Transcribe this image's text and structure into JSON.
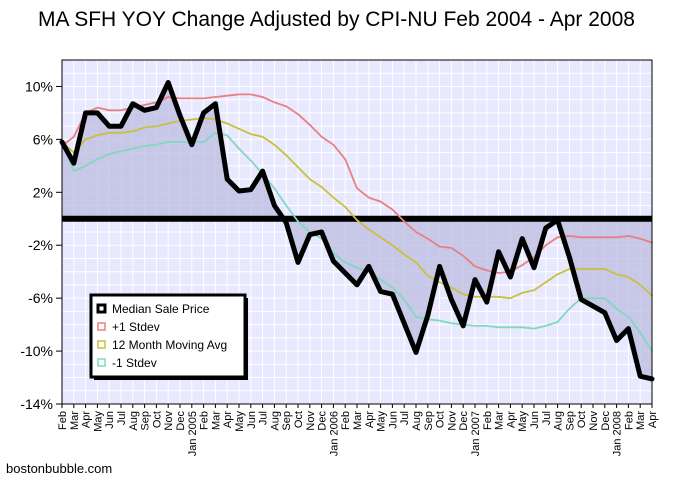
{
  "footer": {
    "credit": "bostonbubble.com"
  },
  "colors": {
    "background": "#ffffff",
    "plot_background": "#e8e8ff",
    "grid": "#ffffff",
    "fill_below": "#bcbce0",
    "median": "#000000",
    "plus1": "#e88080",
    "ma12": "#c8c040",
    "minus1": "#80d8c0"
  },
  "chart_data": {
    "type": "line",
    "title": "MA SFH YOY Change Adjusted by CPI-NU Feb 2004 - Apr 2008",
    "xlabel": "",
    "ylabel": "",
    "ylim": [
      -14,
      12
    ],
    "y_ticks": [
      10,
      6,
      2,
      -2,
      -6,
      -10,
      -14
    ],
    "y_tick_labels": [
      "10%",
      "6%",
      "2%",
      "-2%",
      "-6%",
      "-10%",
      "-14%"
    ],
    "grid": true,
    "legend_position": "bottom-left",
    "categories": [
      "Feb",
      "Mar",
      "Apr",
      "May",
      "Jun",
      "Jul",
      "Aug",
      "Sep",
      "Oct",
      "Nov",
      "Dec",
      "Jan 2005",
      "Feb",
      "Mar",
      "Apr",
      "May",
      "Jun",
      "Jul",
      "Aug",
      "Sep",
      "Oct",
      "Nov",
      "Dec",
      "Jan 2006",
      "Feb",
      "Mar",
      "Apr",
      "May",
      "Jun",
      "Jul",
      "Aug",
      "Sep",
      "Oct",
      "Nov",
      "Dec",
      "Jan 2007",
      "Feb",
      "Mar",
      "Apr",
      "May",
      "Jun",
      "Jul",
      "Aug",
      "Sep",
      "Oct",
      "Nov",
      "Dec",
      "Jan 2008",
      "Feb",
      "Mar",
      "Apr"
    ],
    "series": [
      {
        "name": "Median Sale Price",
        "color": "#000000",
        "values": [
          5.8,
          4.2,
          8.0,
          8.0,
          7.0,
          7.0,
          8.7,
          8.2,
          8.4,
          10.3,
          7.8,
          5.6,
          8.0,
          8.7,
          3.0,
          2.1,
          2.2,
          3.6,
          1.0,
          -0.3,
          -3.3,
          -1.2,
          -1.0,
          -3.2,
          -4.1,
          -5.0,
          -3.6,
          -5.5,
          -5.7,
          -7.9,
          -10.1,
          -7.3,
          -3.6,
          -6.1,
          -8.1,
          -4.6,
          -6.3,
          -2.5,
          -4.4,
          -1.5,
          -3.7,
          -0.7,
          -0.1,
          -2.9,
          -6.1,
          -6.6,
          -7.1,
          -9.2,
          -8.3,
          -11.9,
          -12.1
        ]
      },
      {
        "name": "+1 Stdev",
        "color": "#e88080",
        "values": [
          5.5,
          6.2,
          8.0,
          8.4,
          8.2,
          8.2,
          8.4,
          8.6,
          8.8,
          9.2,
          9.1,
          9.1,
          9.1,
          9.2,
          9.3,
          9.4,
          9.4,
          9.2,
          8.8,
          8.5,
          7.9,
          7.1,
          6.2,
          5.6,
          4.5,
          2.3,
          1.6,
          1.3,
          0.7,
          -0.2,
          -1.0,
          -1.5,
          -2.1,
          -2.2,
          -2.8,
          -3.6,
          -3.9,
          -4.1,
          -4.0,
          -3.5,
          -2.9,
          -2.0,
          -1.4,
          -1.3,
          -1.4,
          -1.4,
          -1.4,
          -1.4,
          -1.3,
          -1.5,
          -1.8
        ]
      },
      {
        "name": "12 Month Moving Avg",
        "color": "#c8c040",
        "values": [
          5.8,
          5.0,
          6.0,
          6.3,
          6.5,
          6.5,
          6.6,
          6.9,
          7.0,
          7.2,
          7.4,
          7.5,
          7.6,
          7.5,
          7.2,
          6.8,
          6.4,
          6.2,
          5.6,
          4.8,
          3.9,
          3.0,
          2.4,
          1.6,
          0.9,
          -0.1,
          -0.8,
          -1.4,
          -2.0,
          -2.7,
          -3.3,
          -4.3,
          -4.8,
          -5.2,
          -5.7,
          -5.9,
          -5.9,
          -5.9,
          -6.0,
          -5.6,
          -5.4,
          -4.8,
          -4.2,
          -3.8,
          -3.8,
          -3.8,
          -3.8,
          -4.2,
          -4.4,
          -5.0,
          -5.8
        ]
      },
      {
        "name": "-1 Stdev",
        "color": "#80d8c0",
        "values": [
          5.8,
          3.6,
          4.0,
          4.5,
          4.9,
          5.1,
          5.3,
          5.5,
          5.6,
          5.8,
          5.8,
          5.8,
          5.8,
          6.5,
          6.3,
          5.3,
          4.4,
          3.4,
          2.3,
          1.0,
          -0.2,
          -1.0,
          -1.5,
          -2.6,
          -3.3,
          -3.7,
          -4.0,
          -4.6,
          -5.2,
          -6.1,
          -7.4,
          -7.6,
          -7.7,
          -7.9,
          -8.0,
          -8.1,
          -8.1,
          -8.2,
          -8.2,
          -8.2,
          -8.3,
          -8.1,
          -7.8,
          -6.8,
          -6.0,
          -6.0,
          -6.0,
          -6.8,
          -7.4,
          -8.6,
          -10.0
        ]
      }
    ]
  }
}
